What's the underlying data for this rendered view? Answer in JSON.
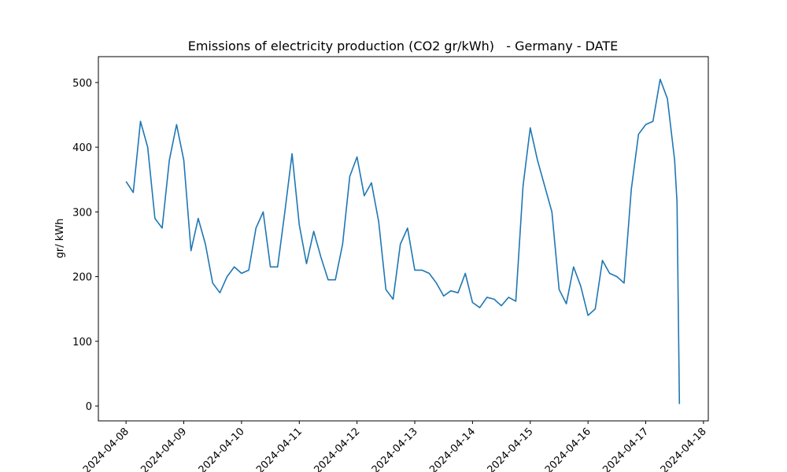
{
  "chart_data": {
    "type": "line",
    "title": "Emissions of electricity production (CO2 gr/kWh)   - Germany - DATE",
    "ylabel": "gr/ kWh",
    "x": [
      "2024-04-08T00:00",
      "2024-04-08T03:00",
      "2024-04-08T06:00",
      "2024-04-08T09:00",
      "2024-04-08T12:00",
      "2024-04-08T15:00",
      "2024-04-08T18:00",
      "2024-04-08T21:00",
      "2024-04-09T00:00",
      "2024-04-09T03:00",
      "2024-04-09T06:00",
      "2024-04-09T09:00",
      "2024-04-09T12:00",
      "2024-04-09T15:00",
      "2024-04-09T18:00",
      "2024-04-09T21:00",
      "2024-04-10T00:00",
      "2024-04-10T03:00",
      "2024-04-10T06:00",
      "2024-04-10T09:00",
      "2024-04-10T12:00",
      "2024-04-10T15:00",
      "2024-04-10T18:00",
      "2024-04-10T21:00",
      "2024-04-11T00:00",
      "2024-04-11T03:00",
      "2024-04-11T06:00",
      "2024-04-11T09:00",
      "2024-04-11T12:00",
      "2024-04-11T15:00",
      "2024-04-11T18:00",
      "2024-04-11T21:00",
      "2024-04-12T00:00",
      "2024-04-12T03:00",
      "2024-04-12T06:00",
      "2024-04-12T09:00",
      "2024-04-12T12:00",
      "2024-04-12T15:00",
      "2024-04-12T18:00",
      "2024-04-12T21:00",
      "2024-04-13T00:00",
      "2024-04-13T03:00",
      "2024-04-13T06:00",
      "2024-04-13T09:00",
      "2024-04-13T12:00",
      "2024-04-13T15:00",
      "2024-04-13T18:00",
      "2024-04-13T21:00",
      "2024-04-14T00:00",
      "2024-04-14T03:00",
      "2024-04-14T06:00",
      "2024-04-14T09:00",
      "2024-04-14T12:00",
      "2024-04-14T15:00",
      "2024-04-14T18:00",
      "2024-04-14T21:00",
      "2024-04-15T00:00",
      "2024-04-15T03:00",
      "2024-04-15T06:00",
      "2024-04-15T09:00",
      "2024-04-15T12:00",
      "2024-04-15T15:00",
      "2024-04-15T18:00",
      "2024-04-15T21:00",
      "2024-04-16T00:00",
      "2024-04-16T03:00",
      "2024-04-16T06:00",
      "2024-04-16T09:00",
      "2024-04-16T12:00",
      "2024-04-16T15:00",
      "2024-04-16T18:00",
      "2024-04-16T21:00",
      "2024-04-17T00:00",
      "2024-04-17T03:00",
      "2024-04-17T06:00",
      "2024-04-17T09:00",
      "2024-04-17T12:00",
      "2024-04-17T13:00",
      "2024-04-17T14:00"
    ],
    "series": [
      {
        "name": "emissions",
        "color": "#1f77b4",
        "values": [
          347,
          330,
          440,
          400,
          290,
          275,
          380,
          435,
          380,
          240,
          290,
          250,
          190,
          175,
          200,
          215,
          205,
          210,
          275,
          300,
          215,
          215,
          300,
          390,
          280,
          220,
          270,
          230,
          195,
          195,
          250,
          355,
          385,
          325,
          345,
          285,
          180,
          165,
          250,
          275,
          210,
          210,
          205,
          190,
          170,
          178,
          175,
          205,
          160,
          152,
          168,
          165,
          155,
          168,
          162,
          340,
          430,
          380,
          340,
          300,
          180,
          158,
          215,
          185,
          140,
          150,
          225,
          205,
          200,
          190,
          335,
          420,
          435,
          440,
          505,
          475,
          380,
          315,
          3
        ]
      }
    ],
    "xlim": [
      "2024-04-07T12:30",
      "2024-04-18T02:00"
    ],
    "xticks": [
      "2024-04-08",
      "2024-04-09",
      "2024-04-10",
      "2024-04-11",
      "2024-04-12",
      "2024-04-13",
      "2024-04-14",
      "2024-04-15",
      "2024-04-16",
      "2024-04-17",
      "2024-04-18"
    ],
    "ylim": [
      -23,
      540
    ],
    "yticks": [
      0,
      100,
      200,
      300,
      400,
      500
    ]
  }
}
